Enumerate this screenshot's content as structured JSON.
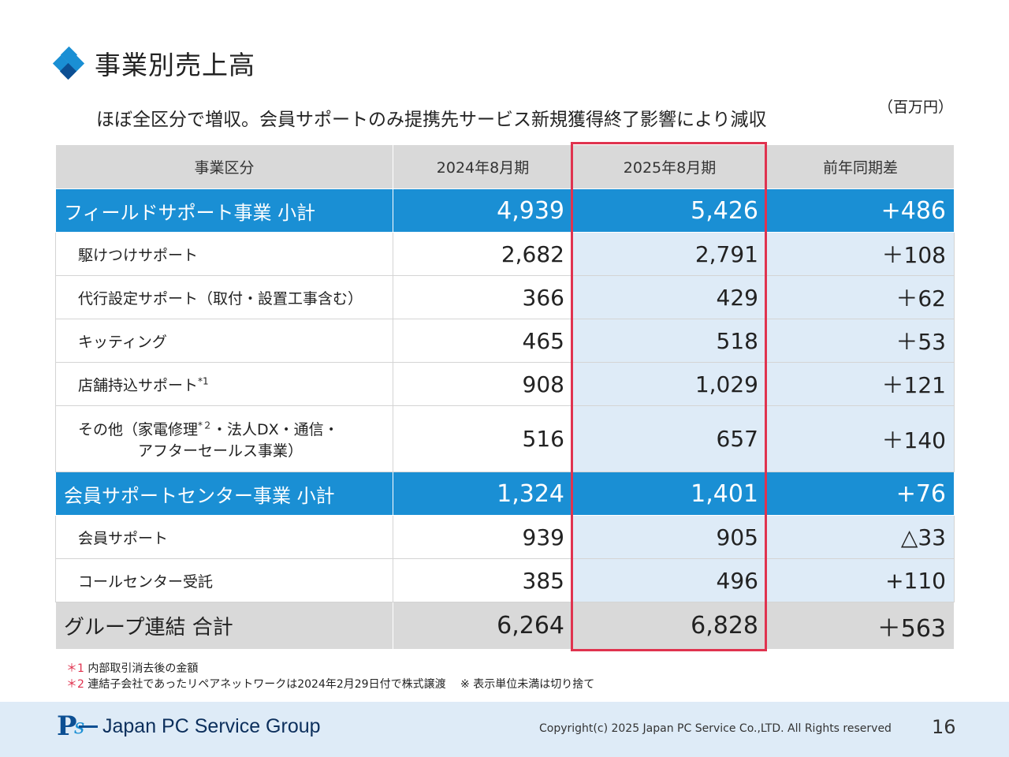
{
  "title": "事業別売上高",
  "subtitle": "ほぼ全区分で増収。会員サポートのみ提携先サービス新規獲得終了影響により減収",
  "unit": "（百万円）",
  "table": {
    "headers": [
      "事業区分",
      "2024年8月期",
      "2025年8月期",
      "前年同期差"
    ],
    "rows": {
      "field_subtotal": {
        "label": "フィールドサポート事業 小計",
        "v2024": "4,939",
        "v2025": "5,426",
        "diff": "+486"
      },
      "kaketsuke": {
        "label": "駆けつけサポート",
        "v2024": "2,682",
        "v2025": "2,791",
        "diff": "＋108"
      },
      "daiko": {
        "label": "代行設定サポート（取付・設置工事含む）",
        "v2024": "366",
        "v2025": "429",
        "diff": "＋62"
      },
      "kitting": {
        "label": "キッティング",
        "v2024": "465",
        "v2025": "518",
        "diff": "＋53"
      },
      "store": {
        "label": "店舗持込サポート",
        "sup": "*1",
        "v2024": "908",
        "v2025": "1,029",
        "diff": "＋121"
      },
      "other": {
        "label_a": "その他（家電修理",
        "sup": "*２",
        "label_b": "・法人DX・通信・",
        "label_line2": "アフターセールス事業）",
        "v2024": "516",
        "v2025": "657",
        "diff": "＋140"
      },
      "member_subtotal": {
        "label": "会員サポートセンター事業 小計",
        "v2024": "1,324",
        "v2025": "1,401",
        "diff": "+76"
      },
      "member": {
        "label": "会員サポート",
        "v2024": "939",
        "v2025": "905",
        "diff": "△33"
      },
      "callcenter": {
        "label": "コールセンター受託",
        "v2024": "385",
        "v2025": "496",
        "diff": "+110"
      },
      "total": {
        "label": "グループ連結 合計",
        "v2024": "6,264",
        "v2025": "6,828",
        "diff": "＋563"
      }
    }
  },
  "notes": {
    "n1_mark": "＊1",
    "n1_text": "内部取引消去後の金額",
    "n2_mark": "＊2",
    "n2_text": "連結子会社であったリペアネットワークは2024年2月29日付で株式譲渡　 ※ 表示単位未満は切り捨て"
  },
  "footer": {
    "logo_text": "Japan PC Service Group",
    "copyright": "Copyright(c) 2025 Japan PC Service Co.,LTD. All Rights reserved",
    "page_number": "16"
  },
  "colors": {
    "accent_blue": "#1a8fd4",
    "highlight_red": "#e0334f",
    "light_blue": "#deebf7",
    "header_gray": "#d9d9d9"
  }
}
